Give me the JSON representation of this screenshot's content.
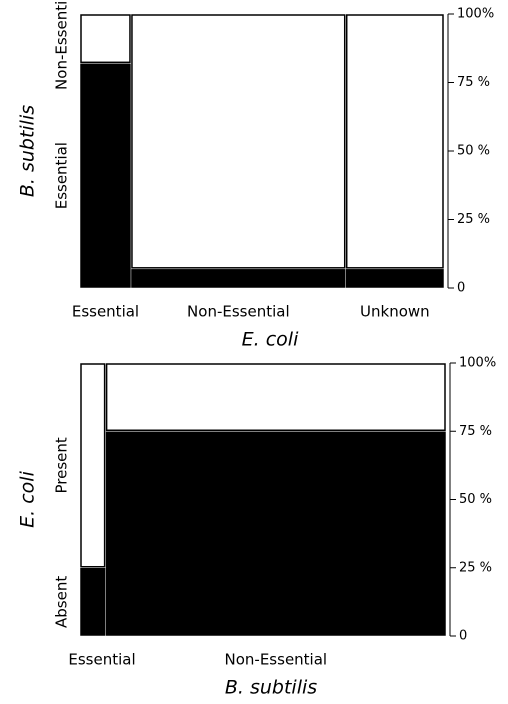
{
  "chart_data": [
    {
      "type": "mosaic",
      "x_label": "E. coli",
      "y_label": "B. subtilis",
      "categories": [
        "Essential",
        "Non-Essential",
        "Unknown"
      ],
      "widths": [
        14,
        59,
        27
      ],
      "series": [
        {
          "name": "Essential",
          "color": "#000000",
          "values": [
            82,
            7,
            7
          ]
        },
        {
          "name": "Non-Essential",
          "color": "#ffffff",
          "values": [
            18,
            93,
            93
          ]
        }
      ],
      "ylim": [
        0,
        100
      ],
      "yticks": [
        0,
        {
          "value": 25,
          "label": "25 %"
        },
        {
          "value": 50,
          "label": "50 %"
        },
        {
          "value": 75,
          "label": "75 %"
        },
        {
          "value": 100,
          "label": "100%"
        }
      ]
    },
    {
      "type": "mosaic",
      "x_label": "B. subtilis",
      "y_label": "E. coli",
      "categories": [
        "Essential",
        "Non-Essential"
      ],
      "widths": [
        7,
        93
      ],
      "series": [
        {
          "name": "Absent",
          "color": "#000000",
          "values": [
            25,
            75
          ]
        },
        {
          "name": "Present",
          "color": "#ffffff",
          "values": [
            75,
            25
          ]
        }
      ],
      "ylim": [
        0,
        100
      ],
      "yticks": [
        0,
        {
          "value": 25,
          "label": "25 %"
        },
        {
          "value": 50,
          "label": "50 %"
        },
        {
          "value": 75,
          "label": "75 %"
        },
        {
          "value": 100,
          "label": "100%"
        }
      ]
    }
  ]
}
